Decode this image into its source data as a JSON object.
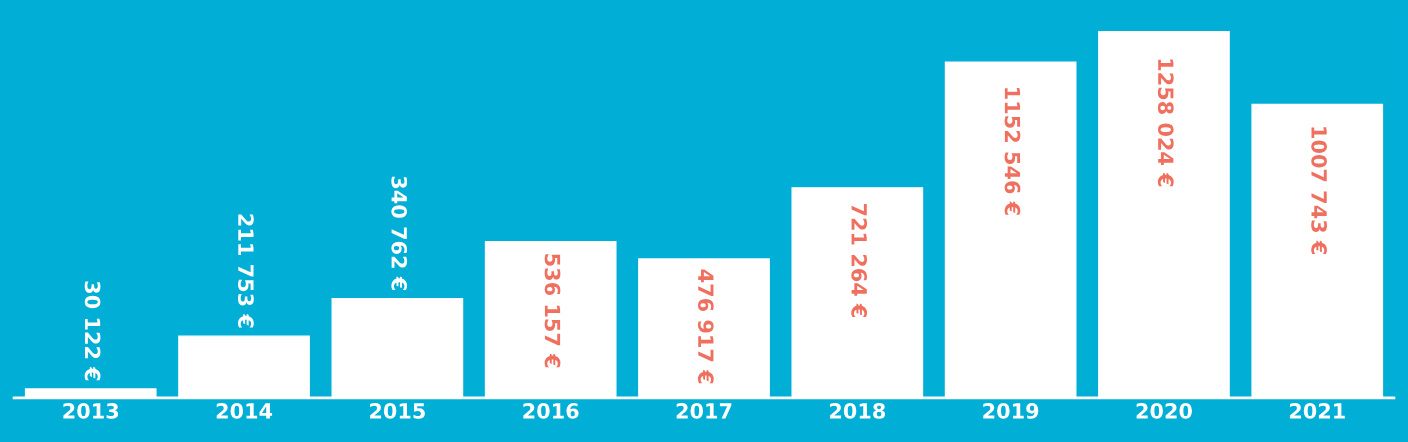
{
  "chart_data": {
    "type": "bar",
    "categories": [
      "2013",
      "2014",
      "2015",
      "2016",
      "2017",
      "2018",
      "2019",
      "2020",
      "2021"
    ],
    "values": [
      30122,
      211753,
      340762,
      536157,
      476917,
      721264,
      1152546,
      1258024,
      1007743
    ],
    "value_labels": [
      "30 122 €",
      "211 753 €",
      "340 762 €",
      "536 157 €",
      "476 917 €",
      "721 264 €",
      "1152 546 €",
      "1258 024 €",
      "1007 743 €"
    ],
    "color": "#ffffff",
    "tick_labels": "x",
    "grid": false,
    "legend": false
  }
}
